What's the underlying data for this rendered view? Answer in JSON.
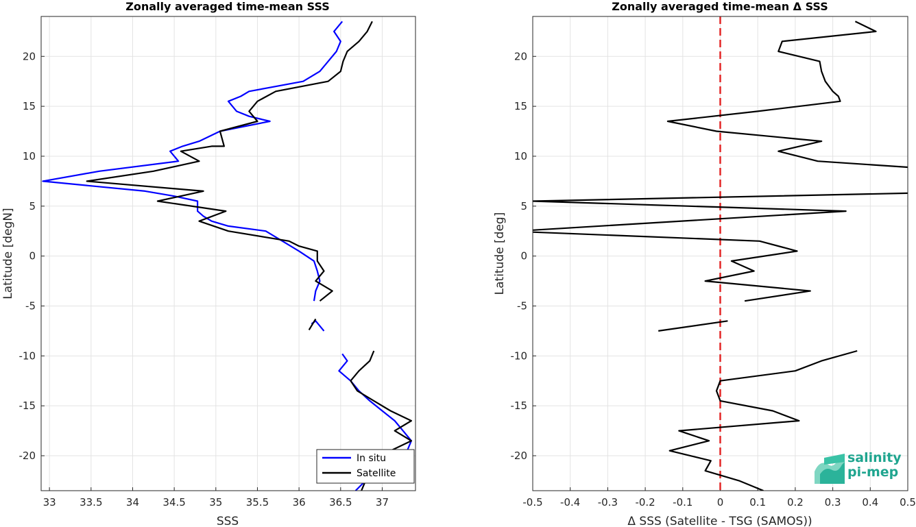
{
  "logo": {
    "line1": "salinity",
    "line2": "pi-mep"
  },
  "chart_data": [
    {
      "type": "line",
      "title": "Zonally averaged time-mean SSS",
      "xlabel": "SSS",
      "ylabel": "Latitude [degN]",
      "xlim": [
        32.9,
        37.4
      ],
      "ylim": [
        -23.5,
        24
      ],
      "xticks": [
        33,
        33.5,
        34,
        34.5,
        35,
        35.5,
        36,
        36.5,
        37
      ],
      "xtick_labels": [
        "33",
        "33.5",
        "34",
        "34.5",
        "35",
        "35.5",
        "36",
        "36.5",
        "37"
      ],
      "yticks": [
        -20,
        -15,
        -10,
        -5,
        0,
        5,
        10,
        15,
        20
      ],
      "ytick_labels": [
        "-20",
        "-15",
        "-10",
        "-5",
        "0",
        "5",
        "10",
        "15",
        "20"
      ],
      "grid": true,
      "legend": {
        "placement": "bottom-right"
      },
      "series": [
        {
          "name": "In situ",
          "color": "#0000ff",
          "segments": [
            [
              [
                36.52,
                23.5
              ],
              [
                36.42,
                22.5
              ],
              [
                36.5,
                21.5
              ],
              [
                36.45,
                20.5
              ],
              [
                36.35,
                19.5
              ],
              [
                36.25,
                18.5
              ],
              [
                36.05,
                17.5
              ],
              [
                35.4,
                16.5
              ],
              [
                35.3,
                16.0
              ],
              [
                35.15,
                15.5
              ],
              [
                35.25,
                14.5
              ],
              [
                35.4,
                14.0
              ],
              [
                35.65,
                13.5
              ],
              [
                35.05,
                12.5
              ],
              [
                34.8,
                11.5
              ],
              [
                34.6,
                11.0
              ],
              [
                34.45,
                10.5
              ],
              [
                34.55,
                9.5
              ],
              [
                33.6,
                8.5
              ],
              [
                32.92,
                7.5
              ],
              [
                34.15,
                6.5
              ],
              [
                34.5,
                6.0
              ],
              [
                34.78,
                5.5
              ],
              [
                34.78,
                4.5
              ],
              [
                34.85,
                4.0
              ],
              [
                34.95,
                3.5
              ],
              [
                35.15,
                3.0
              ],
              [
                35.6,
                2.5
              ],
              [
                35.8,
                1.5
              ],
              [
                36.0,
                0.5
              ],
              [
                36.18,
                -0.5
              ],
              [
                36.22,
                -1.5
              ],
              [
                36.25,
                -2.5
              ],
              [
                36.2,
                -3.5
              ],
              [
                36.18,
                -4.5
              ]
            ],
            [
              [
                36.15,
                -6.8
              ],
              [
                36.2,
                -6.5
              ],
              [
                36.3,
                -7.5
              ]
            ],
            [
              [
                36.52,
                -9.8
              ],
              [
                36.58,
                -10.5
              ],
              [
                36.48,
                -11.5
              ],
              [
                36.62,
                -12.5
              ],
              [
                36.72,
                -13.5
              ],
              [
                36.85,
                -14.5
              ],
              [
                37.0,
                -15.5
              ],
              [
                37.15,
                -16.5
              ],
              [
                37.25,
                -17.5
              ],
              [
                37.35,
                -18.5
              ],
              [
                37.3,
                -19.5
              ],
              [
                37.1,
                -20.5
              ],
              [
                36.9,
                -21.5
              ],
              [
                36.8,
                -22.5
              ],
              [
                36.68,
                -23.5
              ]
            ]
          ]
        },
        {
          "name": "Satellite",
          "color": "#000000",
          "segments": [
            [
              [
                36.88,
                23.5
              ],
              [
                36.82,
                22.5
              ],
              [
                36.72,
                21.5
              ],
              [
                36.58,
                20.5
              ],
              [
                36.53,
                19.5
              ],
              [
                36.5,
                18.5
              ],
              [
                36.35,
                17.5
              ],
              [
                35.72,
                16.5
              ],
              [
                35.5,
                15.5
              ],
              [
                35.4,
                14.5
              ],
              [
                35.5,
                13.5
              ],
              [
                35.05,
                12.5
              ],
              [
                35.1,
                11.0
              ],
              [
                34.95,
                11.0
              ],
              [
                34.58,
                10.5
              ],
              [
                34.8,
                9.5
              ],
              [
                34.25,
                8.5
              ],
              [
                33.45,
                7.5
              ],
              [
                34.85,
                6.5
              ],
              [
                34.3,
                5.5
              ],
              [
                35.12,
                4.5
              ],
              [
                34.8,
                3.5
              ],
              [
                35.15,
                2.5
              ],
              [
                35.88,
                1.5
              ],
              [
                36.0,
                1.0
              ],
              [
                36.22,
                0.5
              ],
              [
                36.22,
                -0.5
              ],
              [
                36.3,
                -1.5
              ],
              [
                36.2,
                -2.5
              ],
              [
                36.4,
                -3.5
              ],
              [
                36.25,
                -4.5
              ]
            ],
            [
              [
                36.2,
                -6.3
              ],
              [
                36.12,
                -7.4
              ]
            ],
            [
              [
                36.9,
                -9.5
              ],
              [
                36.85,
                -10.5
              ],
              [
                36.72,
                -11.5
              ],
              [
                36.62,
                -12.5
              ],
              [
                36.7,
                -13.5
              ],
              [
                36.9,
                -14.5
              ],
              [
                37.1,
                -15.5
              ],
              [
                37.35,
                -16.5
              ],
              [
                37.15,
                -17.5
              ],
              [
                37.35,
                -18.5
              ],
              [
                37.1,
                -19.5
              ],
              [
                36.95,
                -20.5
              ],
              [
                36.85,
                -21.5
              ],
              [
                36.8,
                -22.5
              ],
              [
                36.75,
                -23.5
              ]
            ]
          ]
        }
      ]
    },
    {
      "type": "line",
      "title": "Zonally averaged time-mean Δ SSS",
      "xlabel": "Δ SSS (Satellite - TSG (SAMOS))",
      "ylabel": "Latitude [deg]",
      "xlim": [
        -0.5,
        0.5
      ],
      "ylim": [
        -23.5,
        24
      ],
      "xticks": [
        -0.5,
        -0.4,
        -0.3,
        -0.2,
        -0.1,
        0,
        0.1,
        0.2,
        0.3,
        0.4,
        0.5
      ],
      "xtick_labels": [
        "-0.5",
        "-0.4",
        "-0.3",
        "-0.2",
        "-0.1",
        "0",
        "0.1",
        "0.2",
        "0.3",
        "0.4",
        "0.5"
      ],
      "yticks": [
        -20,
        -15,
        -10,
        -5,
        0,
        5,
        10,
        15,
        20
      ],
      "ytick_labels": [
        "-20",
        "-15",
        "-10",
        "-5",
        "0",
        "5",
        "10",
        "15",
        "20"
      ],
      "grid": true,
      "reference_line": {
        "x": 0,
        "color": "#e32626",
        "style": "dashed"
      },
      "series": [
        {
          "color": "#000000",
          "segments": [
            [
              [
                0.36,
                23.5
              ],
              [
                0.415,
                22.5
              ],
              [
                0.165,
                21.5
              ],
              [
                0.155,
                20.5
              ],
              [
                0.265,
                19.5
              ],
              [
                0.27,
                18.5
              ],
              [
                0.28,
                17.5
              ],
              [
                0.3,
                16.5
              ],
              [
                0.315,
                16.0
              ],
              [
                0.32,
                15.5
              ],
              [
                0.1,
                14.5
              ],
              [
                -0.14,
                13.5
              ],
              [
                -0.01,
                12.5
              ],
              [
                0.27,
                11.5
              ],
              [
                0.155,
                10.5
              ],
              [
                0.26,
                9.5
              ],
              [
                0.5,
                8.9
              ]
            ],
            [
              [
                0.5,
                6.3
              ],
              [
                -0.5,
                5.5
              ],
              [
                0.335,
                4.5
              ],
              [
                -0.5,
                2.6
              ]
            ],
            [
              [
                -0.5,
                2.4
              ],
              [
                0.105,
                1.5
              ],
              [
                0.205,
                0.5
              ],
              [
                0.03,
                -0.5
              ],
              [
                0.09,
                -1.5
              ],
              [
                -0.04,
                -2.5
              ],
              [
                0.24,
                -3.5
              ],
              [
                0.065,
                -4.5
              ]
            ],
            [
              [
                -0.165,
                -7.5
              ],
              [
                0.02,
                -6.5
              ]
            ],
            [
              [
                0.365,
                -9.5
              ],
              [
                0.27,
                -10.5
              ],
              [
                0.2,
                -11.5
              ],
              [
                0.0,
                -12.5
              ],
              [
                -0.01,
                -13.5
              ],
              [
                0.0,
                -14.5
              ],
              [
                0.14,
                -15.5
              ],
              [
                0.21,
                -16.5
              ],
              [
                -0.11,
                -17.5
              ],
              [
                -0.03,
                -18.5
              ],
              [
                -0.135,
                -19.5
              ],
              [
                -0.025,
                -20.5
              ],
              [
                -0.04,
                -21.5
              ],
              [
                0.05,
                -22.5
              ],
              [
                0.115,
                -23.5
              ]
            ]
          ]
        }
      ]
    }
  ]
}
